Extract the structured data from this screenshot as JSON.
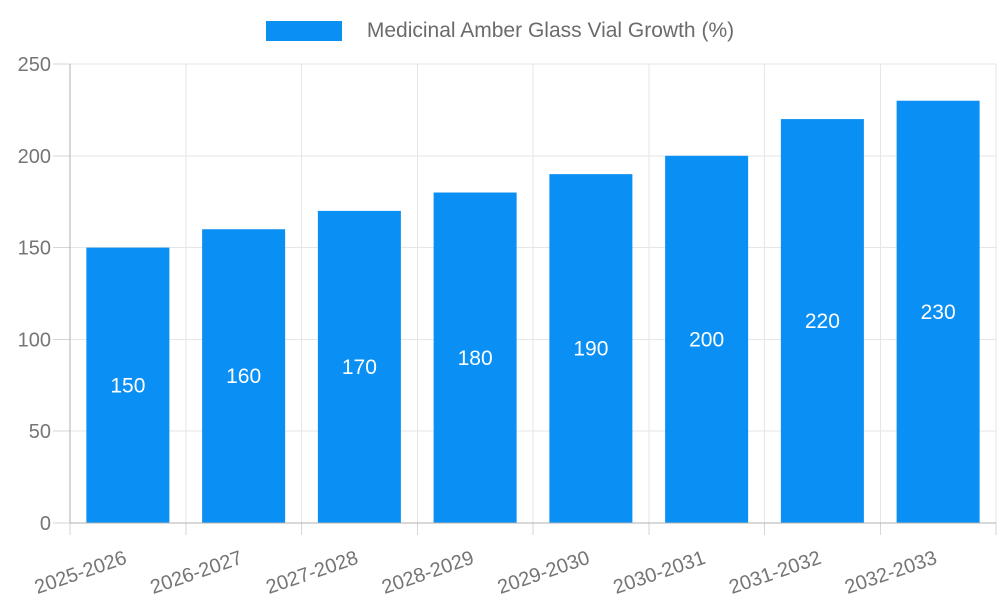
{
  "legend": {
    "label": "Medicinal Amber Glass Vial Growth (%)"
  },
  "chart_data": {
    "type": "bar",
    "title": "Medicinal Amber Glass Vial Growth (%)",
    "categories": [
      "2025-2026",
      "2026-2027",
      "2027-2028",
      "2028-2029",
      "2029-2030",
      "2030-2031",
      "2031-2032",
      "2032-2033"
    ],
    "values": [
      150,
      160,
      170,
      180,
      190,
      200,
      220,
      230
    ],
    "value_labels": [
      "150",
      "160",
      "170",
      "180",
      "190",
      "200",
      "220",
      "230"
    ],
    "xlabel": "",
    "ylabel": "",
    "ylim": [
      0,
      250
    ],
    "yticks": [
      0,
      50,
      100,
      150,
      200,
      250
    ],
    "grid": true,
    "legend_position": "top",
    "x_label_rotation_deg": -19,
    "colors": {
      "bar": "#0a8ff5",
      "value_label": "#ffffff",
      "axis_text": "#757575",
      "legend_text": "#6b6b6b",
      "gridline": "#e6e6e6",
      "tick": "#d6d6d6",
      "axis_line": "#b0b0b0",
      "background": "#ffffff"
    }
  }
}
